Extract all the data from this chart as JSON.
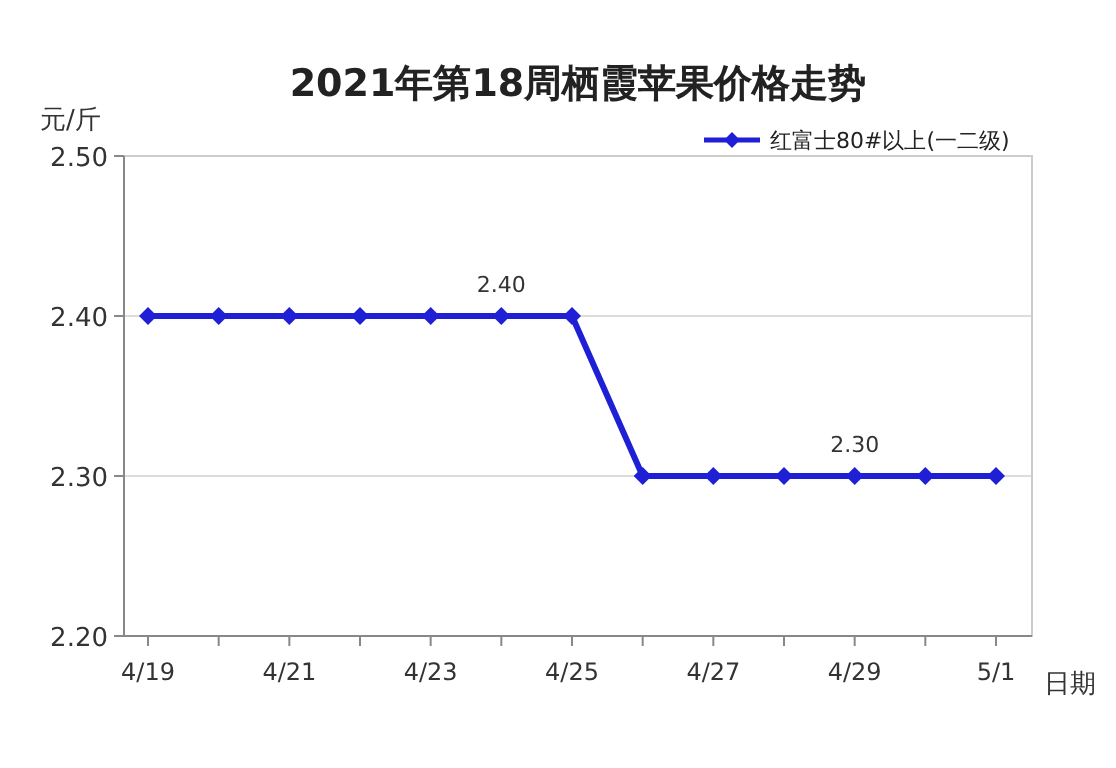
{
  "chart_data": {
    "type": "line",
    "title": "2021年第18周栖霞苹果价格走势",
    "xlabel": "日期",
    "ylabel": "元/斤",
    "categories": [
      "4/19",
      null,
      "4/21",
      null,
      "4/23",
      null,
      "4/25",
      null,
      "4/27",
      null,
      "4/29",
      null,
      "5/1"
    ],
    "series": [
      {
        "name": "红富士80#以上(一二级)",
        "color": "#1f1fd6",
        "values": [
          2.4,
          2.4,
          2.4,
          2.4,
          2.4,
          2.4,
          2.4,
          2.3,
          2.3,
          2.3,
          2.3,
          2.3,
          2.3
        ],
        "value_labels": [
          null,
          null,
          null,
          null,
          null,
          "2.40",
          null,
          null,
          null,
          null,
          "2.30",
          null,
          null
        ]
      }
    ],
    "ylim": [
      2.2,
      2.5
    ],
    "yticks": [
      {
        "value": 2.2,
        "label": "2.20"
      },
      {
        "value": 2.3,
        "label": "2.30"
      },
      {
        "value": 2.4,
        "label": "2.40"
      },
      {
        "value": 2.5,
        "label": "2.50"
      }
    ],
    "grid": "y",
    "legend": "top right",
    "marker": "diamond",
    "line_style": "solid"
  }
}
